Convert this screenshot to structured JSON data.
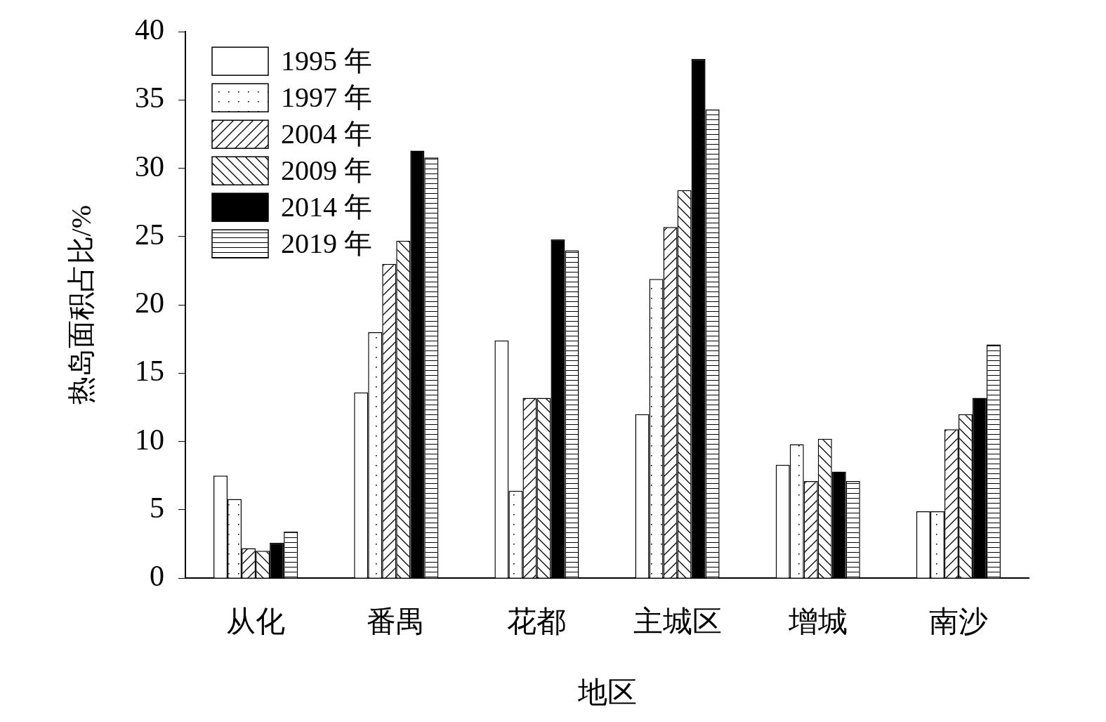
{
  "chart_data": {
    "type": "bar",
    "x_label": "地区",
    "y_label": "热岛面积占比/%",
    "categories": [
      "从化",
      "番禺",
      "花都",
      "主城区",
      "增城",
      "南沙"
    ],
    "series": [
      {
        "name": "1995 年",
        "color": "#ffffff",
        "values": [
          7.5,
          13.6,
          17.4,
          12.0,
          8.3,
          4.9
        ]
      },
      {
        "name": "1997 年",
        "color": "#ffffff",
        "values": [
          5.8,
          18.0,
          6.4,
          21.9,
          9.8,
          4.9
        ]
      },
      {
        "name": "2004 年",
        "color": "#ffffff",
        "values": [
          2.2,
          23.0,
          13.2,
          25.7,
          7.1,
          10.9
        ]
      },
      {
        "name": "2009 年",
        "color": "#ffffff",
        "values": [
          2.0,
          24.7,
          13.2,
          28.4,
          10.2,
          12.0
        ]
      },
      {
        "name": "2014 年",
        "color": "#000000",
        "values": [
          2.6,
          31.3,
          24.8,
          38.0,
          7.8,
          13.2
        ]
      },
      {
        "name": "2019 年",
        "color": "#ffffff",
        "values": [
          3.4,
          30.8,
          24.0,
          34.3,
          7.1,
          17.1
        ]
      }
    ],
    "ylim": [
      0,
      40
    ],
    "yticks": [
      0,
      5,
      10,
      15,
      20,
      25,
      30,
      35,
      40
    ],
    "grid": false,
    "legend": "upper left"
  }
}
